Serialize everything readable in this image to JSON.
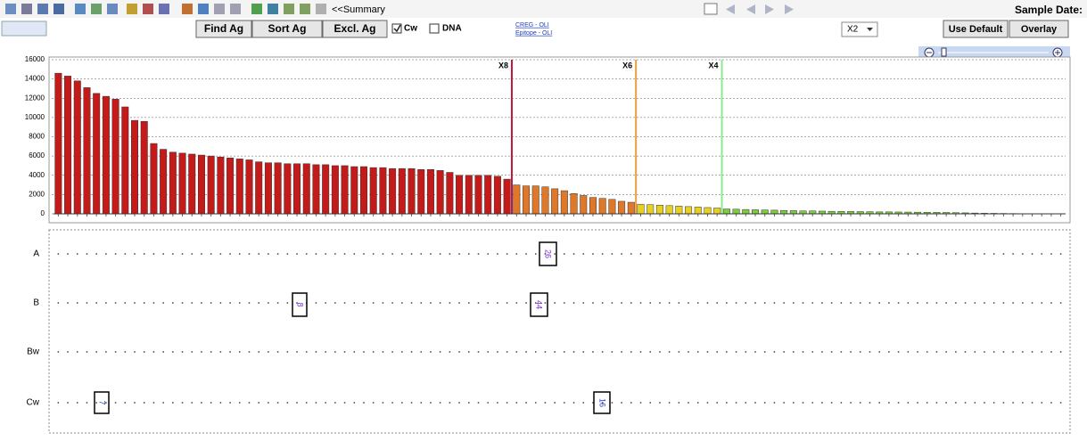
{
  "toolbar": {
    "summary": "<<Summary",
    "sample_date": "Sample Date:"
  },
  "controls": {
    "find": "Find Ag",
    "sort": "Sort Ag",
    "exclude": "Excl. Ag",
    "check_cw": "Cw",
    "check_dna": "DNA",
    "link_creg": "CREG - OLI",
    "link_epitope": "Epitope - OLI",
    "dropdown": "X2",
    "use_default": "Use Default",
    "overlay": "Overlay"
  },
  "chart_data": {
    "type": "bar",
    "ylim": [
      0,
      16000
    ],
    "yticks": [
      0,
      2000,
      4000,
      6000,
      8000,
      10000,
      12000,
      14000,
      16000
    ],
    "grid": true,
    "thresholds": [
      {
        "label": "X8",
        "color": "#c0163a"
      },
      {
        "label": "X6",
        "color": "#e8a040"
      },
      {
        "label": "X4",
        "color": "#8ee88e"
      }
    ],
    "series": [
      {
        "color": "#c41a1a",
        "values": [
          14600,
          14300,
          13800,
          13100,
          12500,
          12200,
          11900,
          11100,
          9700,
          9600,
          7300,
          6700,
          6400,
          6300,
          6200,
          6100,
          6000,
          5900,
          5800,
          5700,
          5600,
          5400,
          5300,
          5300,
          5200,
          5200,
          5200,
          5100,
          5100,
          5000,
          5000,
          4900,
          4900,
          4800,
          4800,
          4700,
          4700,
          4700,
          4600,
          4600,
          4500,
          4300,
          4000,
          4000,
          4000,
          4000,
          3900,
          3600
        ]
      },
      {
        "color": "#e0782a",
        "values": [
          3000,
          2900,
          2900,
          2800,
          2600,
          2400,
          2100,
          1900,
          1700,
          1600,
          1500,
          1300,
          1200
        ]
      },
      {
        "color": "#e8d020",
        "values": [
          1000,
          950,
          900,
          850,
          800,
          750,
          700,
          650,
          600
        ]
      },
      {
        "color": "#7ccf3c",
        "values": [
          500,
          480,
          450,
          420,
          400,
          380,
          350,
          330,
          300,
          300,
          280,
          260,
          250,
          240,
          230,
          220,
          200,
          200,
          190,
          180,
          170,
          160,
          150,
          140,
          120,
          100,
          80,
          60,
          50,
          40,
          30,
          20,
          20,
          10,
          10,
          10
        ]
      }
    ]
  },
  "loci": {
    "rows": [
      "A",
      "B",
      "Bw",
      "Cw"
    ],
    "boxed": {
      "a1": "26",
      "b1": "8",
      "b2": "44",
      "cw1": "7",
      "cw2": "16"
    }
  }
}
